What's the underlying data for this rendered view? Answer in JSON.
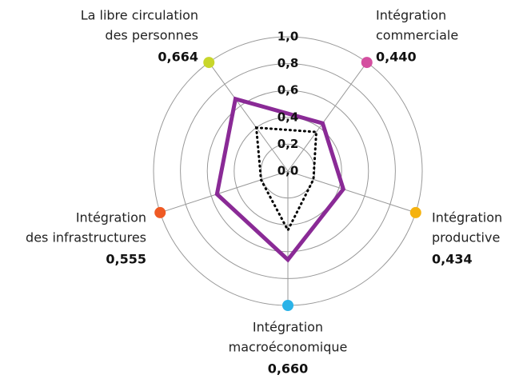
{
  "chart_data": {
    "type": "radar",
    "categories": [
      [
        "La libre circulation",
        "des personnes"
      ],
      [
        "Intégration",
        "commerciale"
      ],
      [
        "Intégration",
        "productive"
      ],
      [
        "Intégration",
        "macroéconomique"
      ],
      [
        "Intégration",
        "des infrastructures"
      ]
    ],
    "category_colors": [
      "#c8d62b",
      "#d44fa0",
      "#f5b20f",
      "#2bb3e8",
      "#ef5a24"
    ],
    "series": [
      {
        "color": "#8a2a96",
        "values": [
          0.664,
          0.44,
          0.434,
          0.66,
          0.555
        ],
        "value_labels": [
          "0,664",
          "0,440",
          "0,434",
          "0,660",
          "0,555"
        ]
      },
      {
        "color": "#000000",
        "dashed": true,
        "values": [
          0.4,
          0.36,
          0.2,
          0.44,
          0.21
        ]
      }
    ],
    "rlim": [
      0,
      1
    ],
    "rticks": [
      {
        "value": 0,
        "label": "0,0"
      },
      {
        "value": 0.2,
        "label": "0,2"
      },
      {
        "value": 0.4,
        "label": "0,4"
      },
      {
        "value": 0.6,
        "label": "0,6"
      },
      {
        "value": 0.8,
        "label": "0,8"
      },
      {
        "value": 1,
        "label": "1,0"
      }
    ]
  }
}
